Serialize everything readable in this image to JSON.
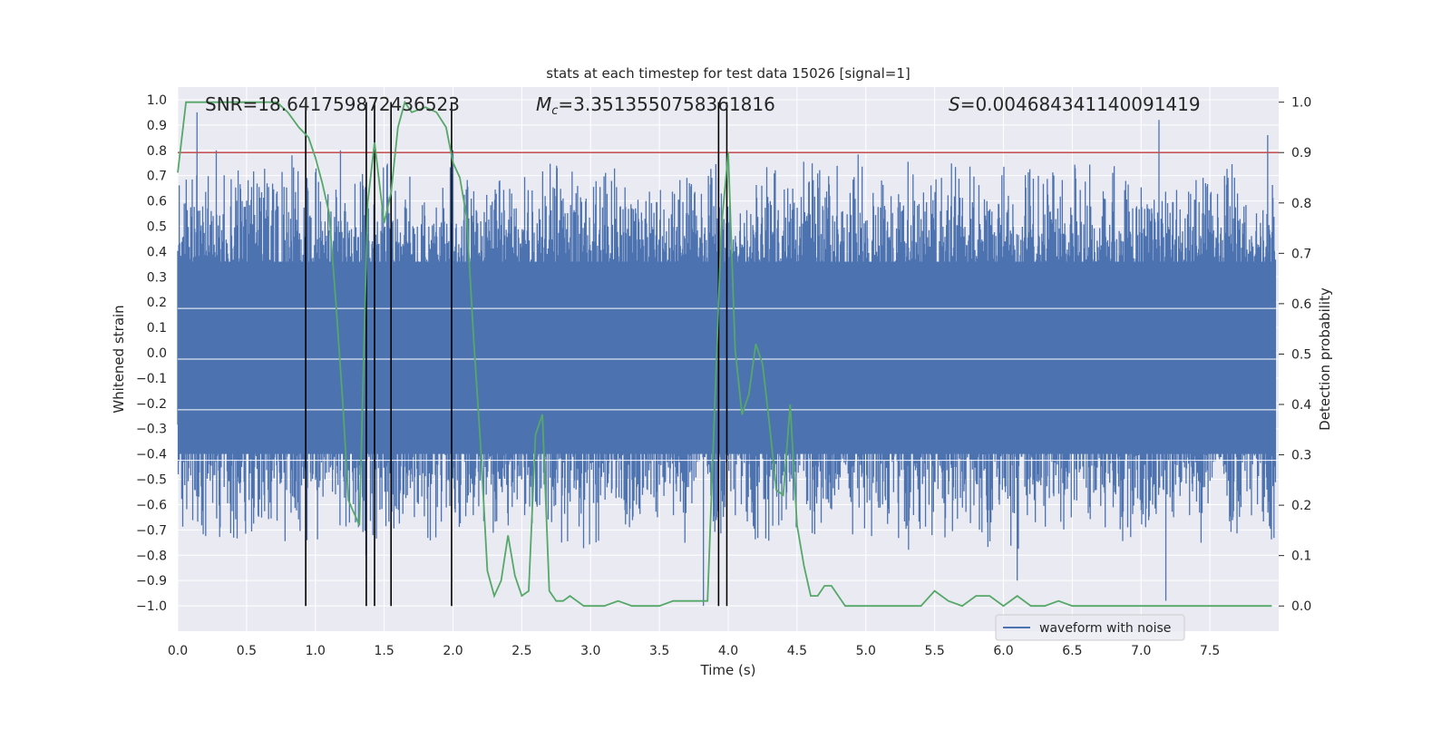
{
  "chart_data": {
    "type": "line",
    "title": "stats at each timestep for test data 15026 [signal=1]",
    "xlabel": "Time (s)",
    "ylabel": "Whitened strain",
    "y2label": "Detection probability",
    "xlim": [
      0.0,
      8.0
    ],
    "ylim": [
      -1.1,
      1.05
    ],
    "y2lim": [
      -0.05,
      1.03
    ],
    "xticks": [
      "0.0",
      "0.5",
      "1.0",
      "1.5",
      "2.0",
      "2.5",
      "3.0",
      "3.5",
      "4.0",
      "4.5",
      "5.0",
      "5.5",
      "6.0",
      "6.5",
      "7.0",
      "7.5"
    ],
    "yticks": [
      "1.0",
      "0.9",
      "0.8",
      "0.7",
      "0.6",
      "0.5",
      "0.4",
      "0.3",
      "0.2",
      "0.1",
      "0.0",
      "-0.1",
      "-0.2",
      "-0.3",
      "-0.4",
      "-0.5",
      "-0.6",
      "-0.7",
      "-0.8",
      "-0.9",
      "-1.0"
    ],
    "y2ticks": [
      "1.0",
      "0.9",
      "0.8",
      "0.7",
      "0.6",
      "0.5",
      "0.4",
      "0.3",
      "0.2",
      "0.1",
      "0.0"
    ],
    "annotations": {
      "snr": "SNR=18.641759872436523",
      "mc_symbol": "M",
      "mc_subscript": "c",
      "mc_value": "=3.3513550758361816",
      "s_symbol": "S",
      "s_value": "=0.004684341140091419"
    },
    "legend": {
      "label": "waveform with noise",
      "position": "bottom-right"
    },
    "threshold": 0.9,
    "detection_markers": [
      0.93,
      1.37,
      1.43,
      1.55,
      1.99,
      3.93,
      3.99
    ],
    "series": [
      {
        "name": "waveform with noise",
        "color": "#4c72b0",
        "style": "dense noisy strain, mostly within ±0.5, spikes to ±1.0",
        "amplitude_envelope": [
          0.55,
          -0.55
        ],
        "notable_spikes": [
          [
            0.14,
            0.95
          ],
          [
            0.28,
            0.8
          ],
          [
            0.83,
            0.78
          ],
          [
            1.37,
            -0.8
          ],
          [
            2.0,
            0.8
          ],
          [
            3.82,
            -1.0
          ],
          [
            6.1,
            -0.9
          ],
          [
            7.13,
            0.92
          ],
          [
            7.18,
            -0.98
          ],
          [
            7.92,
            0.86
          ]
        ]
      },
      {
        "name": "detection probability",
        "axis": "right",
        "color": "#55a868",
        "x": [
          0.0,
          0.06,
          0.12,
          0.3,
          0.5,
          0.72,
          0.8,
          0.88,
          0.95,
          1.0,
          1.05,
          1.1,
          1.15,
          1.2,
          1.24,
          1.32,
          1.38,
          1.43,
          1.5,
          1.55,
          1.6,
          1.65,
          1.7,
          1.8,
          1.88,
          1.95,
          2.0,
          2.05,
          2.1,
          2.15,
          2.2,
          2.25,
          2.3,
          2.35,
          2.4,
          2.45,
          2.5,
          2.55,
          2.6,
          2.65,
          2.7,
          2.75,
          2.8,
          2.85,
          2.95,
          3.0,
          3.1,
          3.2,
          3.3,
          3.4,
          3.5,
          3.6,
          3.7,
          3.75,
          3.8,
          3.85,
          3.9,
          3.95,
          4.0,
          4.05,
          4.1,
          4.15,
          4.2,
          4.25,
          4.3,
          4.35,
          4.4,
          4.45,
          4.5,
          4.55,
          4.6,
          4.65,
          4.7,
          4.75,
          4.8,
          4.85,
          4.9,
          5.0,
          5.2,
          5.4,
          5.5,
          5.6,
          5.7,
          5.8,
          5.9,
          6.0,
          6.1,
          6.2,
          6.3,
          6.4,
          6.5,
          6.7,
          6.9,
          7.0,
          7.1,
          7.2,
          7.4,
          7.6,
          7.8,
          7.95
        ],
        "y": [
          0.86,
          1.0,
          1.0,
          1.0,
          1.0,
          1.0,
          0.98,
          0.95,
          0.93,
          0.89,
          0.84,
          0.78,
          0.6,
          0.4,
          0.21,
          0.16,
          0.8,
          0.92,
          0.76,
          0.82,
          0.95,
          1.0,
          0.98,
          0.99,
          0.98,
          0.95,
          0.88,
          0.85,
          0.77,
          0.53,
          0.32,
          0.07,
          0.02,
          0.05,
          0.14,
          0.06,
          0.02,
          0.03,
          0.34,
          0.38,
          0.03,
          0.01,
          0.01,
          0.02,
          0.0,
          0.0,
          0.0,
          0.01,
          0.0,
          0.0,
          0.0,
          0.01,
          0.01,
          0.01,
          0.01,
          0.01,
          0.38,
          0.75,
          0.9,
          0.51,
          0.38,
          0.42,
          0.52,
          0.48,
          0.36,
          0.23,
          0.22,
          0.4,
          0.16,
          0.08,
          0.02,
          0.02,
          0.04,
          0.04,
          0.02,
          0.0,
          0.0,
          0.0,
          0.0,
          0.0,
          0.03,
          0.01,
          0.0,
          0.02,
          0.02,
          0.0,
          0.02,
          0.0,
          0.0,
          0.01,
          0.0,
          0.0,
          0.0,
          0.0,
          0.0,
          0.0,
          0.0,
          0.0,
          0.0,
          0.0
        ]
      }
    ]
  },
  "colors": {
    "plot_bg": "#eaeaf2",
    "grid": "#ffffff",
    "threshold_line": "#c44e52",
    "marker_line": "#000000"
  }
}
